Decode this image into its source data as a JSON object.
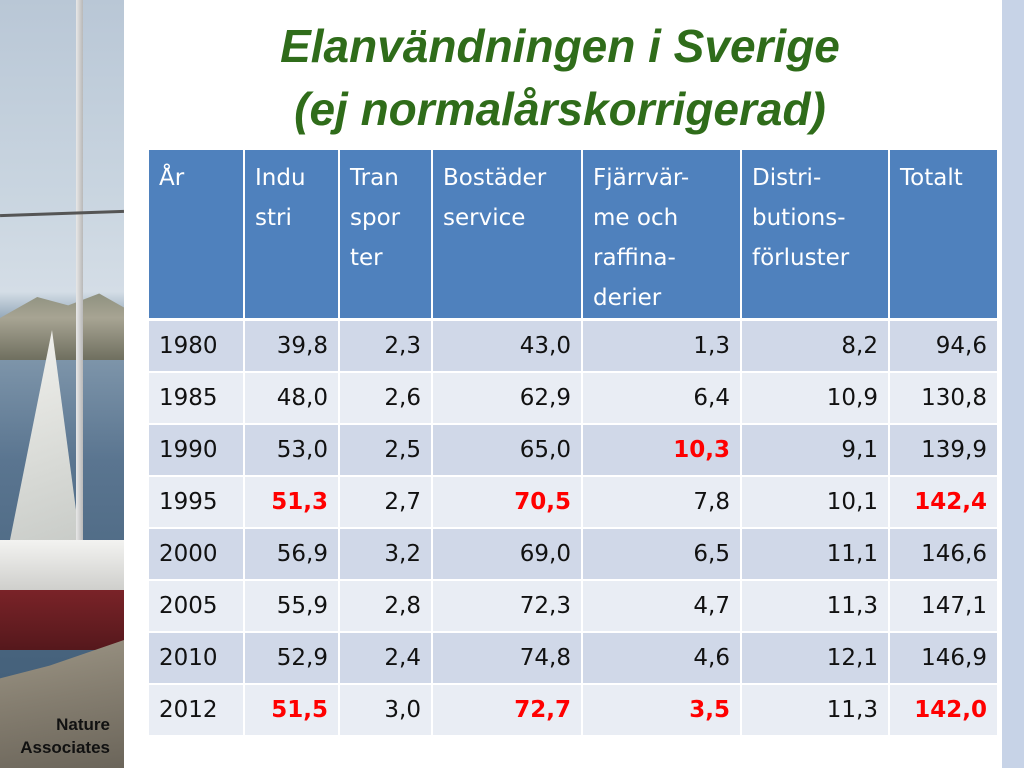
{
  "title_line1": "Elanvändningen i Sverige",
  "title_line2": "(ej normalårskorrigerad)",
  "photo_credit": [
    "Nature",
    "Associates"
  ],
  "colors": {
    "title": "#2f6c1a",
    "header_bg": "#4f81bd",
    "row_odd": "#d0d8e8",
    "row_even": "#e9edf4",
    "highlight": "#ff0000"
  },
  "table": {
    "headers": [
      [
        "År"
      ],
      [
        "Indu",
        "stri"
      ],
      [
        "Tran",
        "spor",
        "ter"
      ],
      [
        "Bostäder",
        "service"
      ],
      [
        "Fjärrvär-",
        "me och",
        "raffina-",
        "derier"
      ],
      [
        "Distri-",
        "butions-",
        "förluster"
      ],
      [
        "Totalt"
      ]
    ],
    "rows": [
      {
        "cells": [
          "1980",
          "39,8",
          "2,3",
          "43,0",
          "1,3",
          "8,2",
          "94,6"
        ],
        "highlight": []
      },
      {
        "cells": [
          "1985",
          "48,0",
          "2,6",
          "62,9",
          "6,4",
          "10,9",
          "130,8"
        ],
        "highlight": []
      },
      {
        "cells": [
          "1990",
          "53,0",
          "2,5",
          "65,0",
          "10,3",
          "9,1",
          "139,9"
        ],
        "highlight": [
          4
        ]
      },
      {
        "cells": [
          "1995",
          "51,3",
          "2,7",
          "70,5",
          "7,8",
          "10,1",
          "142,4"
        ],
        "highlight": [
          1,
          3,
          6
        ]
      },
      {
        "cells": [
          "2000",
          "56,9",
          "3,2",
          "69,0",
          "6,5",
          "11,1",
          "146,6"
        ],
        "highlight": []
      },
      {
        "cells": [
          "2005",
          "55,9",
          "2,8",
          "72,3",
          "4,7",
          "11,3",
          "147,1"
        ],
        "highlight": []
      },
      {
        "cells": [
          "2010",
          "52,9",
          "2,4",
          "74,8",
          "4,6",
          "12,1",
          "146,9"
        ],
        "highlight": []
      },
      {
        "cells": [
          "2012",
          "51,5",
          "3,0",
          "72,7",
          "3,5",
          "11,3",
          "142,0"
        ],
        "highlight": [
          1,
          3,
          4,
          6
        ]
      }
    ]
  }
}
